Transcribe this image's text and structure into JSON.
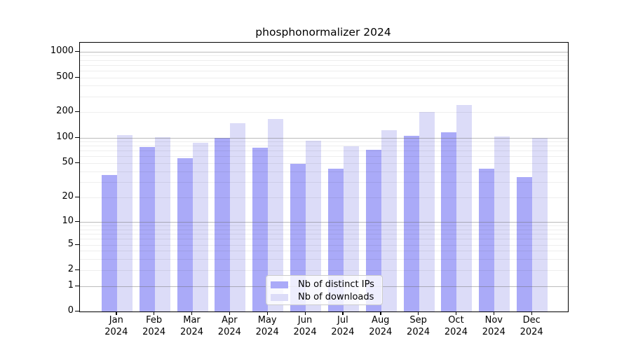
{
  "title": "phosphonormalizer 2024",
  "colors": {
    "distinct_ips": "#aaaaf8",
    "downloads": "#dcdcf8",
    "axis": "#000000"
  },
  "legend": {
    "items": [
      {
        "label": "Nb of distinct IPs",
        "color_key": "distinct_ips"
      },
      {
        "label": "Nb of downloads",
        "color_key": "downloads"
      }
    ]
  },
  "y_axis": {
    "tick_labels": [
      "1000",
      "500",
      "200",
      "100",
      "50",
      "20",
      "10",
      "5",
      "2",
      "1",
      "0"
    ]
  },
  "x_axis": {
    "months": [
      "Jan",
      "Feb",
      "Mar",
      "Apr",
      "May",
      "Jun",
      "Jul",
      "Aug",
      "Sep",
      "Oct",
      "Nov",
      "Dec"
    ],
    "year": "2024"
  },
  "chart_data": {
    "type": "bar",
    "title": "phosphonormalizer 2024",
    "categories": [
      "Jan 2024",
      "Feb 2024",
      "Mar 2024",
      "Apr 2024",
      "May 2024",
      "Jun 2024",
      "Jul 2024",
      "Aug 2024",
      "Sep 2024",
      "Oct 2024",
      "Nov 2024",
      "Dec 2024"
    ],
    "series": [
      {
        "name": "Nb of distinct IPs",
        "color": "#aaaaf8",
        "values": [
          36,
          77,
          57,
          100,
          76,
          49,
          43,
          72,
          105,
          115,
          43,
          34
        ]
      },
      {
        "name": "Nb of downloads",
        "color": "#dcdcf8",
        "values": [
          107,
          101,
          86,
          148,
          163,
          92,
          79,
          122,
          199,
          238,
          103,
          100
        ]
      }
    ],
    "xlabel": "",
    "ylabel": "",
    "yscale": "log-like (ticks 1,2,5,10,20,50,100,200,500,1000 with 0 baseline)",
    "y_ticks": [
      0,
      1,
      2,
      5,
      10,
      20,
      50,
      100,
      200,
      500,
      1000
    ],
    "ylim": [
      0,
      1300
    ],
    "grid": true,
    "legend_position": "inside bottom-center"
  }
}
